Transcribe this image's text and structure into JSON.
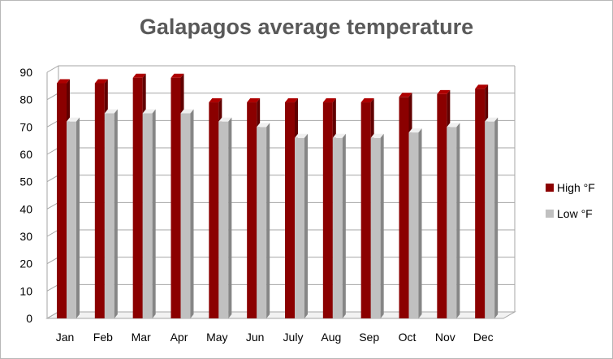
{
  "chart_data": {
    "type": "bar",
    "title": "Galapagos average temperature",
    "xlabel": "",
    "ylabel": "",
    "ylim": [
      0,
      90
    ],
    "yticks": [
      0,
      10,
      20,
      30,
      40,
      50,
      60,
      70,
      80,
      90
    ],
    "grid": true,
    "legend_position": "right",
    "categories": [
      "Jan",
      "Feb",
      "Mar",
      "Apr",
      "May",
      "Jun",
      "July",
      "Aug",
      "Sep",
      "Oct",
      "Nov",
      "Dec"
    ],
    "series": [
      {
        "name": "High °F",
        "color": "#8b0000",
        "values": [
          86,
          86,
          88,
          88,
          79,
          79,
          79,
          79,
          79,
          81,
          82,
          84
        ]
      },
      {
        "name": "Low °F",
        "color": "#c0c0c0",
        "values": [
          72,
          75,
          75,
          75,
          72,
          70,
          66,
          66,
          66,
          68,
          70,
          72
        ]
      }
    ]
  }
}
